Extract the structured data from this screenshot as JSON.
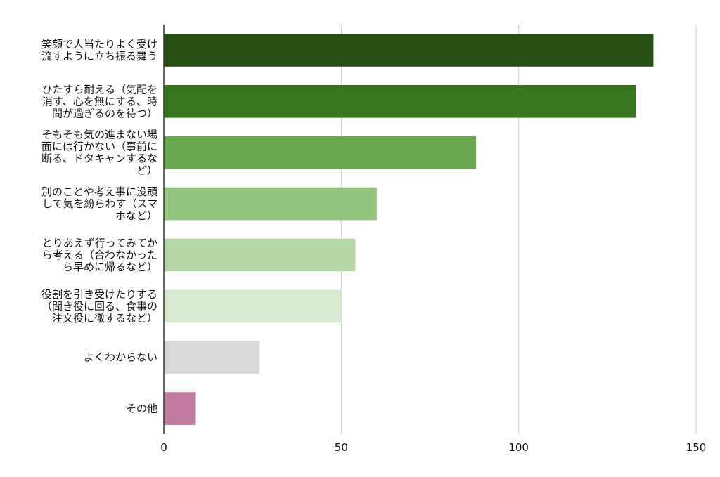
{
  "chart_data": {
    "type": "bar",
    "orientation": "horizontal",
    "title": "",
    "xlabel": "",
    "ylabel": "",
    "xlim": [
      0,
      150
    ],
    "x_ticks": [
      0,
      50,
      100,
      150
    ],
    "grid": true,
    "legend": "none",
    "categories": [
      [
        "笑顔で人当たりよく受け",
        "流すように立ち振る舞う"
      ],
      [
        "ひたすら耐える（気配を",
        "消す、心を無にする、時",
        "間が過ぎるのを待つ）"
      ],
      [
        "そもそも気の進まない場",
        "面には行かない（事前に",
        "断る、ドタキャンするな",
        "ど）"
      ],
      [
        "別のことや考え事に没頭",
        "して気を紛らわす（スマ",
        "ホなど）"
      ],
      [
        "とりあえず行ってみてか",
        "ら考える（合わなかった",
        "ら早めに帰るなど）"
      ],
      [
        "役割を引き受けたりする",
        "（聞き役に回る、食事の",
        "注文役に徹するなど）"
      ],
      [
        "よくわからない"
      ],
      [
        "その他"
      ]
    ],
    "values": [
      138,
      133,
      88,
      60,
      54,
      50,
      27,
      9
    ],
    "colors": [
      "#274e13",
      "#38761d",
      "#6aa84f",
      "#93c47d",
      "#b6d7a8",
      "#d9ead3",
      "#d9d9d9",
      "#c27ba0"
    ]
  }
}
